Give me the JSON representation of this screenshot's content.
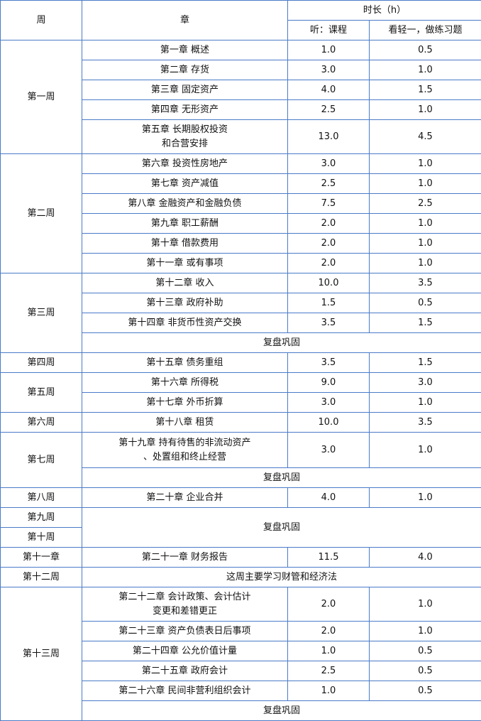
{
  "header": {
    "week": "周",
    "chapter": "章",
    "duration": "时长（h）",
    "listen": "听：课程",
    "practice": "看轻一，做练习题"
  },
  "review": "复盘巩固",
  "weeks": {
    "w1": "第一周",
    "w2": "第二周",
    "w3": "第三周",
    "w4": "第四周",
    "w5": "第五周",
    "w6": "第六周",
    "w7": "第七周",
    "w8": "第八周",
    "w9": "第九周",
    "w10": "第十周",
    "w11": "第十一章",
    "w12": "第十二周",
    "w13": "第十三周"
  },
  "week12_note": "这周主要学习财管和经济法",
  "rows": [
    {
      "chapter": "第一章  概述",
      "listen": "1.0",
      "practice": "0.5"
    },
    {
      "chapter": "第二章  存货",
      "listen": "3.0",
      "practice": "1.0"
    },
    {
      "chapter": "第三章  固定资产",
      "listen": "4.0",
      "practice": "1.5"
    },
    {
      "chapter": "第四章  无形资产",
      "listen": "2.5",
      "practice": "1.0"
    },
    {
      "chapter": "第五章  长期股权投资\n和合营安排",
      "listen": "13.0",
      "practice": "4.5"
    },
    {
      "chapter": "第六章  投资性房地产",
      "listen": "3.0",
      "practice": "1.0"
    },
    {
      "chapter": "第七章 资产减值",
      "listen": "2.5",
      "practice": "1.0"
    },
    {
      "chapter": "第八章 金融资产和金融负债",
      "listen": "7.5",
      "practice": "2.5"
    },
    {
      "chapter": "第九章 职工薪酬",
      "listen": "2.0",
      "practice": "1.0"
    },
    {
      "chapter": "第十章 借款费用",
      "listen": "2.0",
      "practice": "1.0"
    },
    {
      "chapter": "第十一章 或有事项",
      "listen": "2.0",
      "practice": "1.0"
    },
    {
      "chapter": "第十二章 收入",
      "listen": "10.0",
      "practice": "3.5"
    },
    {
      "chapter": "第十三章 政府补助",
      "listen": "1.5",
      "practice": "0.5"
    },
    {
      "chapter": "第十四章 非货币性资产交换",
      "listen": "3.5",
      "practice": "1.5"
    },
    {
      "chapter": "第十五章 债务重组",
      "listen": "3.5",
      "practice": "1.5"
    },
    {
      "chapter": "第十六章 所得税",
      "listen": "9.0",
      "practice": "3.0"
    },
    {
      "chapter": "第十七章 外币折算",
      "listen": "3.0",
      "practice": "1.0"
    },
    {
      "chapter": "第十八章 租赁",
      "listen": "10.0",
      "practice": "3.5"
    },
    {
      "chapter": "第十九章 持有待售的非流动资产\n、处置组和终止经营",
      "listen": "3.0",
      "practice": "1.0"
    },
    {
      "chapter": "第二十章 企业合并",
      "listen": "4.0",
      "practice": "1.0"
    },
    {
      "chapter": "第二十一章 财务报告",
      "listen": "11.5",
      "practice": "4.0"
    },
    {
      "chapter": "第二十二章 会计政策、会计估计\n变更和差错更正",
      "listen": "2.0",
      "practice": "1.0"
    },
    {
      "chapter": "第二十三章 资产负债表日后事项",
      "listen": "2.0",
      "practice": "1.0"
    },
    {
      "chapter": "第二十四章 公允价值计量",
      "listen": "1.0",
      "practice": "0.5"
    },
    {
      "chapter": "第二十五章 政府会计",
      "listen": "2.5",
      "practice": "0.5"
    },
    {
      "chapter": "第二十六章 民间非营利组织会计",
      "listen": "1.0",
      "practice": "0.5"
    }
  ]
}
